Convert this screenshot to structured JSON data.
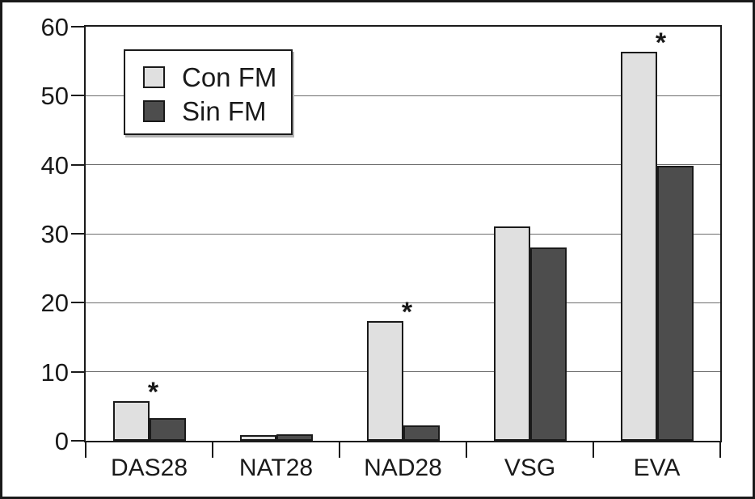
{
  "figure": {
    "background": "#ffffff",
    "frame_color": "#1a1a1a",
    "gridline_color": "#6e6e6e",
    "text_color": "#1a1a1a"
  },
  "chart_data": {
    "type": "bar",
    "title": "",
    "xlabel": "",
    "ylabel": "",
    "categories": [
      "DAS28",
      "NAT28",
      "NAD28",
      "VSG",
      "EVA"
    ],
    "series": [
      {
        "name": "Con FM",
        "color": "#e0e0e0",
        "values": [
          5.8,
          0.8,
          17.4,
          31,
          56.4
        ]
      },
      {
        "name": "Sin FM",
        "color": "#4d4d4d",
        "values": [
          3.3,
          0.9,
          2.2,
          28,
          39.8
        ]
      }
    ],
    "annotations": [
      {
        "category": "DAS28",
        "series": "Con FM",
        "text": "*"
      },
      {
        "category": "NAD28",
        "series": "Con FM",
        "text": "*"
      },
      {
        "category": "EVA",
        "series": "Con FM",
        "text": "*"
      }
    ],
    "ylim": [
      0,
      60
    ],
    "yticks": [
      0,
      10,
      20,
      30,
      40,
      50,
      60
    ],
    "grid": true,
    "legend": {
      "position": "upper-left",
      "entries": [
        "Con FM",
        "Sin FM"
      ]
    }
  }
}
